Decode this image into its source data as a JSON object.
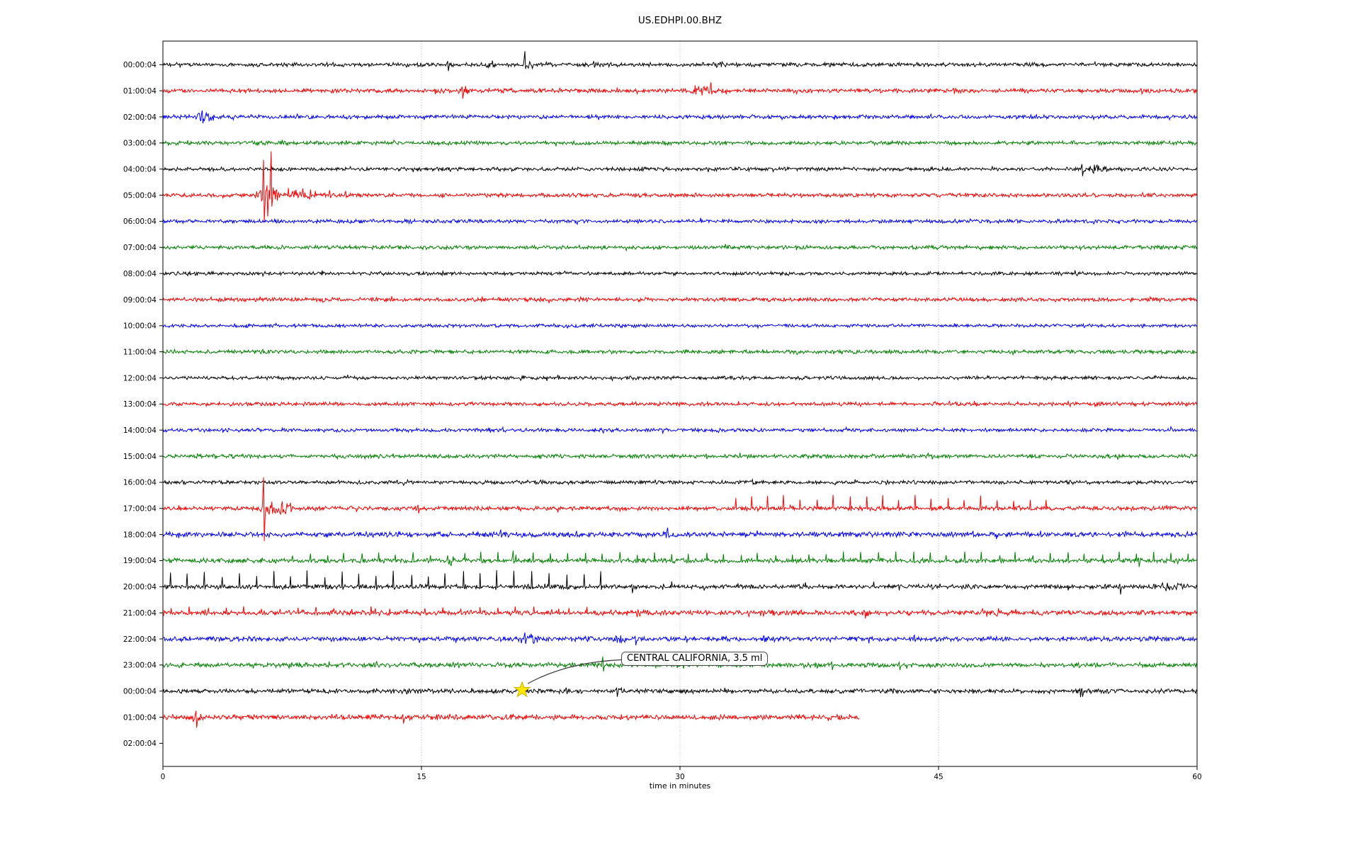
{
  "chart_data": {
    "type": "line",
    "subtype": "seismogram-dayplot",
    "title": "US.EDHPI.00.BHZ",
    "station": "US.EDHPI.00.BHZ",
    "x_axis": {
      "label": "time in minutes",
      "ticks": [
        0,
        15,
        30,
        45,
        60
      ],
      "range": [
        0,
        60
      ],
      "gridlines": [
        15,
        30,
        45
      ],
      "grid_style": "dotted"
    },
    "y_axis": {
      "label_format": "HH:MM:SS",
      "rows_per_line_minutes": 60
    },
    "palette": {
      "black": "#000000",
      "red": "#ff0000",
      "blue": "#0000ff",
      "green": "#008000"
    },
    "annotation": {
      "text": "CENTRAL CALIFORNIA, 3.5 ml",
      "marker": "star",
      "marker_color": "#ffe600",
      "row": 24,
      "time_min": 20.84
    },
    "rows": [
      {
        "label": "00:00:04",
        "color": "black",
        "noise": 1.0,
        "coverage": [
          0,
          60
        ],
        "events": [
          {
            "type": "spike",
            "t": 16.5,
            "up": 5,
            "down": 9
          },
          {
            "type": "burst",
            "t0": 18.4,
            "t1": 19.6,
            "amp": 5
          },
          {
            "type": "burst",
            "t0": 20.7,
            "t1": 21.7,
            "amp": 5
          },
          {
            "type": "spike",
            "t": 21.0,
            "up": 19,
            "down": 6
          },
          {
            "type": "spike",
            "t": 25.0,
            "up": 5,
            "down": 4
          },
          {
            "type": "burst",
            "t0": 31.6,
            "t1": 33.0,
            "amp": 4.5
          }
        ]
      },
      {
        "label": "01:00:04",
        "color": "red",
        "noise": 1.05,
        "coverage": [
          0,
          60
        ],
        "events": [
          {
            "type": "burst",
            "t0": 17.0,
            "t1": 17.8,
            "amp": 7
          },
          {
            "type": "spike",
            "t": 17.35,
            "up": 6,
            "down": 11
          },
          {
            "type": "burst",
            "t0": 30.3,
            "t1": 32.2,
            "amp": 6
          },
          {
            "type": "spike",
            "t": 31.8,
            "up": 12,
            "down": 5
          }
        ]
      },
      {
        "label": "02:00:04",
        "color": "blue",
        "noise": 1.0,
        "coverage": [
          0,
          60
        ],
        "events": [
          {
            "type": "burst",
            "t0": 1.8,
            "t1": 3.1,
            "amp": 8
          },
          {
            "type": "spike",
            "t": 2.3,
            "up": 9,
            "down": 9
          }
        ]
      },
      {
        "label": "03:00:04",
        "color": "green",
        "noise": 1.0,
        "coverage": [
          0,
          60
        ],
        "events": []
      },
      {
        "label": "04:00:04",
        "color": "black",
        "noise": 0.95,
        "coverage": [
          0,
          60
        ],
        "events": [
          {
            "type": "burst",
            "t0": 52.9,
            "t1": 55.2,
            "amp": 6
          },
          {
            "type": "spike",
            "t": 53.3,
            "up": 7,
            "down": 10
          }
        ]
      },
      {
        "label": "05:00:04",
        "color": "red",
        "noise": 1.0,
        "coverage": [
          0,
          60
        ],
        "events": [
          {
            "type": "burst",
            "t0": 5.2,
            "t1": 6.9,
            "amp": 11
          },
          {
            "type": "burst",
            "t0": 6.9,
            "t1": 9.0,
            "amp": 6
          },
          {
            "type": "spike",
            "t": 5.84,
            "up": 50,
            "down": 38
          },
          {
            "type": "spike",
            "t": 6.29,
            "up": 62,
            "down": 16
          },
          {
            "type": "spike",
            "t": 6.05,
            "up": 14,
            "down": 30
          },
          {
            "type": "pulses",
            "t0": 7.3,
            "t1": 9.2,
            "period": 0.4,
            "amp": 8,
            "down": 0.3
          },
          {
            "type": "spike",
            "t": 9.7,
            "up": 7,
            "down": 4
          },
          {
            "type": "spike",
            "t": 10.6,
            "up": 6,
            "down": 3
          }
        ]
      },
      {
        "label": "06:00:04",
        "color": "blue",
        "noise": 0.95,
        "coverage": [
          0,
          60
        ],
        "events": []
      },
      {
        "label": "07:00:04",
        "color": "green",
        "noise": 0.95,
        "coverage": [
          0,
          60
        ],
        "events": []
      },
      {
        "label": "08:00:04",
        "color": "black",
        "noise": 0.9,
        "coverage": [
          0,
          60
        ],
        "events": [
          {
            "type": "burst",
            "t0": 7.5,
            "t1": 8.2,
            "amp": 2.6
          }
        ]
      },
      {
        "label": "09:00:04",
        "color": "red",
        "noise": 1.0,
        "coverage": [
          0,
          60
        ],
        "events": []
      },
      {
        "label": "10:00:04",
        "color": "blue",
        "noise": 0.85,
        "coverage": [
          0,
          60
        ],
        "events": []
      },
      {
        "label": "11:00:04",
        "color": "green",
        "noise": 0.95,
        "coverage": [
          0,
          60
        ],
        "events": []
      },
      {
        "label": "12:00:04",
        "color": "black",
        "noise": 0.9,
        "coverage": [
          0,
          60
        ],
        "events": []
      },
      {
        "label": "13:00:04",
        "color": "red",
        "noise": 0.95,
        "coverage": [
          0,
          60
        ],
        "events": []
      },
      {
        "label": "14:00:04",
        "color": "blue",
        "noise": 0.9,
        "coverage": [
          0,
          60
        ],
        "events": [
          {
            "type": "spike",
            "t": 19.7,
            "up": 4,
            "down": 2
          }
        ]
      },
      {
        "label": "15:00:04",
        "color": "green",
        "noise": 1.0,
        "coverage": [
          0,
          60
        ],
        "events": [
          {
            "type": "spike",
            "t": 31.5,
            "up": 3,
            "down": 4
          }
        ]
      },
      {
        "label": "16:00:04",
        "color": "black",
        "noise": 0.95,
        "coverage": [
          0,
          60
        ],
        "events": [
          {
            "type": "burst",
            "t0": 26.0,
            "t1": 26.5,
            "amp": 3
          },
          {
            "type": "spike",
            "t": 34.2,
            "up": 4,
            "down": 3
          }
        ]
      },
      {
        "label": "17:00:04",
        "color": "red",
        "noise": 1.1,
        "coverage": [
          0,
          60
        ],
        "events": [
          {
            "type": "burst",
            "t0": 5.3,
            "t1": 7.7,
            "amp": 9
          },
          {
            "type": "spike",
            "t": 5.84,
            "up": 44,
            "down": 46
          },
          {
            "type": "spike",
            "t": 6.9,
            "up": 10,
            "down": 6
          },
          {
            "type": "spike",
            "t": 7.4,
            "up": 8,
            "down": 5
          },
          {
            "type": "spike",
            "t": 14.8,
            "up": 5,
            "down": 7
          },
          {
            "type": "burst",
            "t0": 20.3,
            "t1": 21.0,
            "amp": 4
          },
          {
            "type": "pulses",
            "t0": 33.2,
            "t1": 51.4,
            "period": 0.95,
            "amp": 15,
            "down": 0.25
          }
        ]
      },
      {
        "label": "18:00:04",
        "color": "blue",
        "noise": 1.3,
        "coverage": [
          0,
          60
        ],
        "events": [
          {
            "type": "burst",
            "t0": 9.2,
            "t1": 10.0,
            "amp": 4
          },
          {
            "type": "burst",
            "t0": 12.3,
            "t1": 14.6,
            "amp": 4
          },
          {
            "type": "spike",
            "t": 19.6,
            "up": 7,
            "down": 4
          },
          {
            "type": "spike",
            "t": 24.0,
            "up": 5,
            "down": 3
          },
          {
            "type": "burst",
            "t0": 28.6,
            "t1": 29.7,
            "amp": 5
          },
          {
            "type": "burst",
            "t0": 42.5,
            "t1": 44.0,
            "amp": 3.5
          },
          {
            "type": "spike",
            "t": 47.0,
            "up": 5,
            "down": 3
          },
          {
            "type": "burst",
            "t0": 55.0,
            "t1": 56.5,
            "amp": 3.5
          }
        ]
      },
      {
        "label": "19:00:04",
        "color": "green",
        "noise": 1.15,
        "coverage": [
          0,
          60
        ],
        "events": [
          {
            "type": "pulses",
            "t0": 7.5,
            "t1": 59.8,
            "period": 1.0,
            "amp": 10,
            "down": 0.3
          },
          {
            "type": "burst",
            "t0": 16.3,
            "t1": 17.1,
            "amp": 6
          },
          {
            "type": "spike",
            "t": 20.3,
            "up": 14,
            "down": 4
          },
          {
            "type": "burst",
            "t0": 22.0,
            "t1": 27.0,
            "amp": 3
          },
          {
            "type": "spike",
            "t": 56.6,
            "up": 4,
            "down": 9
          }
        ]
      },
      {
        "label": "20:00:04",
        "color": "black",
        "noise": 1.15,
        "coverage": [
          0,
          60
        ],
        "events": [
          {
            "type": "pulses",
            "t0": 0.4,
            "t1": 25.4,
            "period": 1.0,
            "amp": 18,
            "down": 0.25
          },
          {
            "type": "pulses",
            "t0": 29.5,
            "t1": 41.5,
            "period": 3.9,
            "amp": 6,
            "down": 0.3
          },
          {
            "type": "spike",
            "t": 27.2,
            "up": 3,
            "down": 9
          },
          {
            "type": "spike",
            "t": 55.5,
            "up": 4,
            "down": 11
          },
          {
            "type": "burst",
            "t0": 56.6,
            "t1": 60.0,
            "amp": 5
          }
        ]
      },
      {
        "label": "21:00:04",
        "color": "red",
        "noise": 1.25,
        "coverage": [
          0,
          60
        ],
        "events": [
          {
            "type": "pulses",
            "t0": 0.5,
            "t1": 25.2,
            "period": 1.05,
            "amp": 7,
            "down": 0.3
          },
          {
            "type": "burst",
            "t0": 26.2,
            "t1": 29.6,
            "amp": 5
          },
          {
            "type": "burst",
            "t0": 39.8,
            "t1": 41.5,
            "amp": 4
          },
          {
            "type": "burst",
            "t0": 43.0,
            "t1": 43.7,
            "amp": 4
          },
          {
            "type": "pulses",
            "t0": 47.5,
            "t1": 50.8,
            "period": 1.0,
            "amp": 6,
            "down": 0.3
          },
          {
            "type": "burst",
            "t0": 57.0,
            "t1": 58.0,
            "amp": 3
          }
        ]
      },
      {
        "label": "22:00:04",
        "color": "blue",
        "noise": 1.2,
        "coverage": [
          0,
          60
        ],
        "events": [
          {
            "type": "burst",
            "t0": 20.4,
            "t1": 22.1,
            "amp": 7
          },
          {
            "type": "spike",
            "t": 21.0,
            "up": 9,
            "down": 7
          },
          {
            "type": "burst",
            "t0": 24.2,
            "t1": 25.1,
            "amp": 4
          },
          {
            "type": "burst",
            "t0": 26.0,
            "t1": 27.1,
            "amp": 5
          },
          {
            "type": "spike",
            "t": 27.4,
            "up": 4,
            "down": 9
          },
          {
            "type": "burst",
            "t0": 34.5,
            "t1": 35.5,
            "amp": 4
          },
          {
            "type": "spike",
            "t": 43.6,
            "up": 6,
            "down": 4
          },
          {
            "type": "burst",
            "t0": 50.0,
            "t1": 51.0,
            "amp": 3
          }
        ]
      },
      {
        "label": "23:00:04",
        "color": "green",
        "noise": 1.2,
        "coverage": [
          0,
          60
        ],
        "events": [
          {
            "type": "spike",
            "t": 25.5,
            "up": 12,
            "down": 9
          },
          {
            "type": "spike",
            "t": 29.8,
            "up": 6,
            "down": 4
          },
          {
            "type": "burst",
            "t0": 31.0,
            "t1": 32.2,
            "amp": 3
          },
          {
            "type": "spike",
            "t": 38.8,
            "up": 5,
            "down": 7
          },
          {
            "type": "spike",
            "t": 42.7,
            "up": 4,
            "down": 7
          }
        ]
      },
      {
        "label": "00:00:04",
        "color": "black",
        "noise": 1.1,
        "coverage": [
          0,
          60
        ],
        "events": [
          {
            "type": "burst",
            "t0": 10.5,
            "t1": 11.2,
            "amp": 3
          },
          {
            "type": "burst",
            "t0": 13.1,
            "t1": 16.2,
            "amp": 3.8
          },
          {
            "type": "spike",
            "t": 23.4,
            "up": 5,
            "down": 4
          },
          {
            "type": "burst",
            "t0": 25.7,
            "t1": 27.2,
            "amp": 4
          },
          {
            "type": "spike",
            "t": 26.3,
            "up": 5,
            "down": 8
          },
          {
            "type": "burst",
            "t0": 46.4,
            "t1": 47.6,
            "amp": 3
          },
          {
            "type": "burst",
            "t0": 52.3,
            "t1": 54.2,
            "amp": 4
          },
          {
            "type": "spike",
            "t": 53.3,
            "up": 4,
            "down": 8
          }
        ]
      },
      {
        "label": "01:00:04",
        "color": "red",
        "noise": 1.3,
        "coverage": [
          0,
          40.4
        ],
        "events": [
          {
            "type": "burst",
            "t0": 1.4,
            "t1": 2.6,
            "amp": 6
          },
          {
            "type": "spike",
            "t": 1.9,
            "up": 9,
            "down": 15
          },
          {
            "type": "spike",
            "t": 13.9,
            "up": 4,
            "down": 9
          },
          {
            "type": "burst",
            "t0": 15.5,
            "t1": 16.2,
            "amp": 4
          }
        ]
      },
      {
        "label": "02:00:04",
        "color": "blue",
        "noise": 0,
        "coverage": [],
        "events": []
      }
    ]
  }
}
